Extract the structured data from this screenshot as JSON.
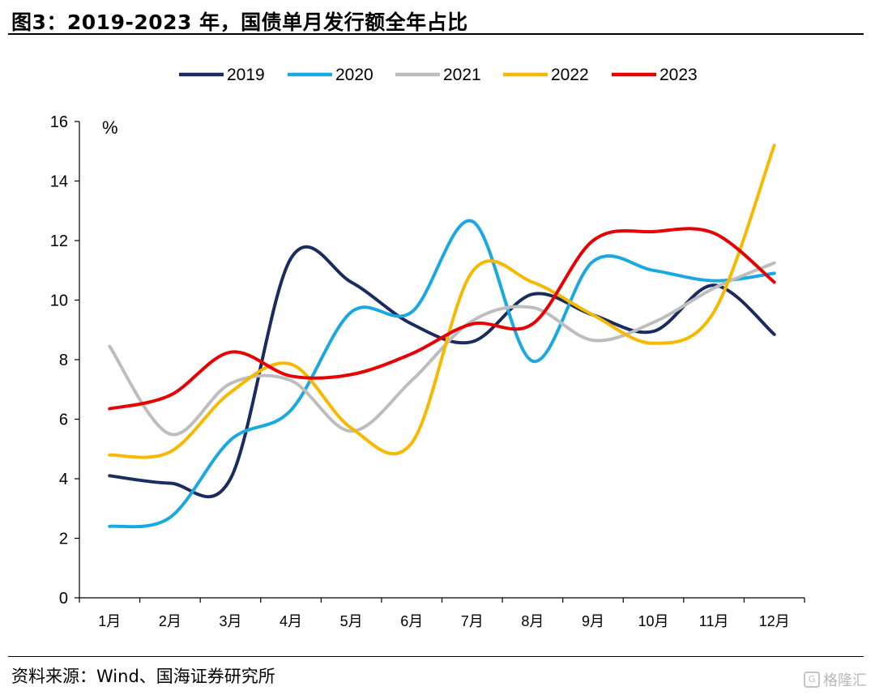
{
  "header": {
    "title": "图3：2019-2023 年，国债单月发行额全年占比"
  },
  "footer": {
    "source": "资料来源：Wind、国海证券研究所",
    "watermark": "格隆汇"
  },
  "chart_data": {
    "type": "line",
    "unit_label": "%",
    "categories": [
      "1月",
      "2月",
      "3月",
      "4月",
      "5月",
      "6月",
      "7月",
      "8月",
      "9月",
      "10月",
      "11月",
      "12月"
    ],
    "ylim": [
      0,
      16
    ],
    "yticks": [
      0,
      2,
      4,
      6,
      8,
      10,
      12,
      14,
      16
    ],
    "legend_position": "top-center",
    "grid": false,
    "series": [
      {
        "name": "2019",
        "color": "#1a2b5f",
        "values": [
          4.1,
          3.85,
          4.0,
          11.4,
          10.6,
          9.2,
          8.6,
          10.2,
          9.5,
          8.95,
          10.5,
          8.85
        ]
      },
      {
        "name": "2020",
        "color": "#1aa8e0",
        "values": [
          2.4,
          2.7,
          5.3,
          6.3,
          9.6,
          9.6,
          12.65,
          7.95,
          11.3,
          11.0,
          10.65,
          10.9
        ]
      },
      {
        "name": "2021",
        "color": "#bdbdbd",
        "values": [
          8.45,
          5.5,
          7.2,
          7.3,
          5.6,
          7.3,
          9.3,
          9.75,
          8.65,
          9.25,
          10.4,
          11.25
        ]
      },
      {
        "name": "2022",
        "color": "#f7b800",
        "values": [
          4.8,
          4.9,
          6.9,
          7.85,
          5.7,
          5.2,
          10.95,
          10.6,
          9.5,
          8.55,
          9.6,
          15.2
        ]
      },
      {
        "name": "2023",
        "color": "#e80000",
        "values": [
          6.35,
          6.8,
          8.25,
          7.45,
          7.5,
          8.2,
          9.2,
          9.2,
          12.0,
          12.3,
          12.25,
          10.6
        ]
      }
    ]
  }
}
